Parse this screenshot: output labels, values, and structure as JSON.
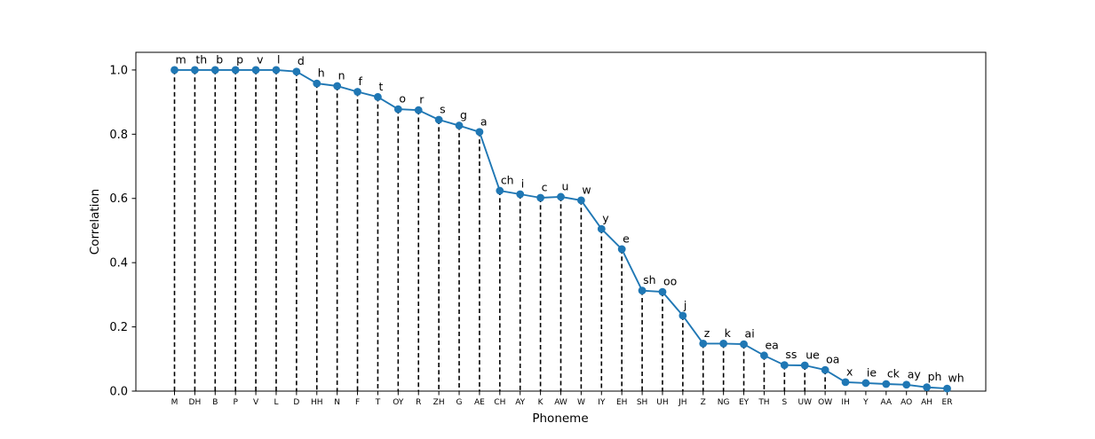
{
  "chart_data": {
    "type": "line",
    "title": "",
    "xlabel": "Phoneme",
    "ylabel": "Correlation",
    "ylim": [
      0,
      1.055
    ],
    "yticks": [
      "0.0",
      "0.2",
      "0.4",
      "0.6",
      "0.8",
      "1.0"
    ],
    "grid": false,
    "legend": null,
    "line_color": "#1f77b4",
    "marker": "circle",
    "stem_lines": "black dashed vertical lines from each point down to baseline",
    "categories": [
      "M",
      "DH",
      "B",
      "P",
      "V",
      "L",
      "D",
      "HH",
      "N",
      "F",
      "T",
      "OY",
      "R",
      "ZH",
      "G",
      "AE",
      "CH",
      "AY",
      "K",
      "AW",
      "W",
      "IY",
      "EH",
      "SH",
      "UH",
      "JH",
      "Z",
      "NG",
      "EY",
      "TH",
      "S",
      "UW",
      "OW",
      "IH",
      "Y",
      "AA",
      "AO",
      "AH",
      "ER"
    ],
    "point_labels": [
      "m",
      "th",
      "b",
      "p",
      "v",
      "l",
      "d",
      "h",
      "n",
      "f",
      "t",
      "o",
      "r",
      "s",
      "g",
      "a",
      "ch",
      "i",
      "c",
      "u",
      "w",
      "y",
      "e",
      "sh",
      "oo",
      "j",
      "z",
      "k",
      "ai",
      "ea",
      "ss",
      "ue",
      "oa",
      "x",
      "ie",
      "ck",
      "ay",
      "ph",
      "wh"
    ],
    "values": [
      1.0,
      1.0,
      1.0,
      1.0,
      1.0,
      1.0,
      0.995,
      0.958,
      0.95,
      0.932,
      0.916,
      0.878,
      0.875,
      0.845,
      0.827,
      0.807,
      0.624,
      0.613,
      0.602,
      0.605,
      0.594,
      0.505,
      0.442,
      0.313,
      0.309,
      0.235,
      0.148,
      0.148,
      0.146,
      0.111,
      0.081,
      0.08,
      0.066,
      0.028,
      0.025,
      0.022,
      0.02,
      0.012,
      0.008
    ]
  }
}
